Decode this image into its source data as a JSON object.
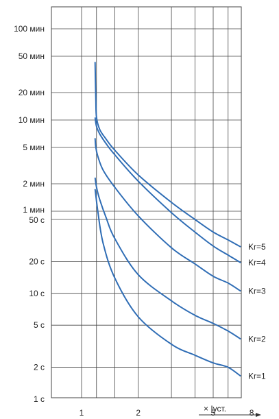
{
  "chart_data": {
    "type": "line",
    "title": "",
    "xlabel": "× Iуст.",
    "ylabel": "",
    "x_scale": "log",
    "y_scale": "log",
    "xlim": [
      0.82,
      8
    ],
    "ylim_seconds": [
      1,
      6000
    ],
    "grid": true,
    "x_ticks": [
      {
        "value": 1,
        "label": "1"
      },
      {
        "value": 2,
        "label": "2"
      },
      {
        "value": 5,
        "label": "5"
      },
      {
        "value": 8,
        "label": "8"
      }
    ],
    "x_gridlines": [
      1,
      1.2,
      1.5,
      2,
      3,
      4,
      5,
      6,
      7,
      8
    ],
    "y_ticks_left": [
      {
        "value": 6000,
        "label": "100 мин"
      },
      {
        "value": 3000,
        "label": "50 мин"
      },
      {
        "value": 1200,
        "label": "20 мин"
      },
      {
        "value": 600,
        "label": "10 мин"
      },
      {
        "value": 300,
        "label": "5 мин"
      },
      {
        "value": 120,
        "label": "2 мин"
      },
      {
        "value": 60,
        "label": "1 мин"
      },
      {
        "value": 50,
        "label": "50 с"
      },
      {
        "value": 20,
        "label": "20 с"
      },
      {
        "value": 10,
        "label": "10 с"
      },
      {
        "value": 5,
        "label": "5 с"
      },
      {
        "value": 2,
        "label": "2 с"
      },
      {
        "value": 1,
        "label": "1 с"
      }
    ],
    "line_color": "#2f6db5",
    "grid_color": "#444444",
    "series": [
      {
        "name": "Kr=5",
        "x": [
          1.18,
          1.19,
          1.2,
          1.25,
          1.35,
          1.5,
          2,
          3,
          4,
          5,
          6,
          7
        ],
        "y": [
          2600,
          1000,
          640,
          470,
          370,
          280,
          150,
          75,
          50,
          38,
          32,
          27.5
        ]
      },
      {
        "name": "Kr=4",
        "x": [
          1.18,
          1.2,
          1.25,
          1.35,
          1.5,
          2,
          3,
          4,
          5,
          6,
          7
        ],
        "y": [
          640,
          510,
          420,
          330,
          250,
          128,
          58,
          38,
          28,
          23,
          19.5
        ]
      },
      {
        "name": "Kr=3",
        "x": [
          1.18,
          1.19,
          1.22,
          1.3,
          1.5,
          2,
          3,
          4,
          5,
          6,
          7
        ],
        "y": [
          380,
          300,
          240,
          170,
          110,
          54,
          27,
          19,
          14.5,
          12.5,
          10.5
        ]
      },
      {
        "name": "Kr=2",
        "x": [
          1.18,
          1.2,
          1.25,
          1.35,
          1.5,
          2,
          3,
          4,
          5,
          6,
          7
        ],
        "y": [
          140,
          110,
          80,
          52,
          33,
          15,
          8.5,
          6.2,
          5.2,
          4.4,
          3.7
        ]
      },
      {
        "name": "Kr=1",
        "x": [
          1.18,
          1.22,
          1.3,
          1.5,
          2,
          3,
          4,
          5,
          6,
          7
        ],
        "y": [
          105,
          60,
          30,
          14,
          6.0,
          3.3,
          2.6,
          2.2,
          2.0,
          1.65
        ]
      }
    ]
  }
}
